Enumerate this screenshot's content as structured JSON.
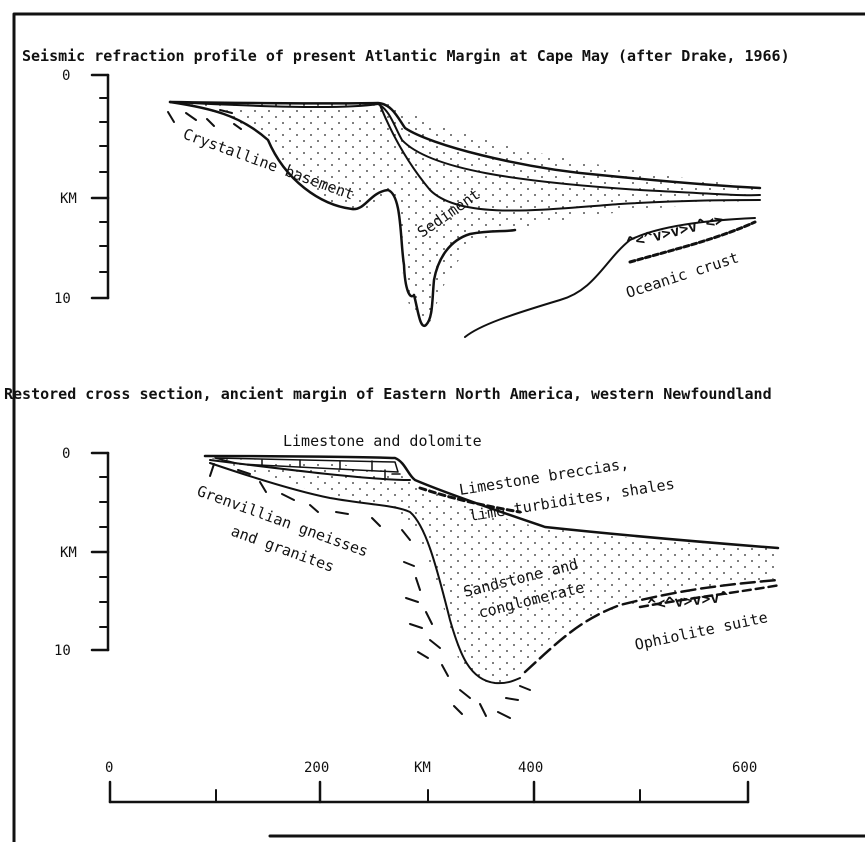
{
  "top": {
    "title": "Seismic refraction profile of present  Atlantic Margin at Cape May (after Drake, 1966)",
    "depth_axis": {
      "ticks": [
        "0",
        "KM",
        "10"
      ]
    },
    "labels": {
      "crystalline_basement": "Crystalline basement",
      "sediment": "Sediment",
      "oceanic_crust": "Oceanic crust"
    }
  },
  "bottom": {
    "title": "Restored cross section, ancient margin of Eastern North America, western Newfoundland",
    "depth_axis": {
      "ticks": [
        "0",
        "KM",
        "10"
      ]
    },
    "labels": {
      "limestone_dolomite": "Limestone and dolomite",
      "breccias_line1": "Limestone breccias,",
      "breccias_line2": "lime turbidites, shales",
      "grenvillian_line1": "Grenvillian gneisses",
      "grenvillian_line2": "and granites",
      "sandstone_line1": "Sandstone and",
      "sandstone_line2": "conglomerate",
      "ophiolite": "Ophiolite suite"
    }
  },
  "distance_axis": {
    "ticks": [
      "0",
      "200",
      "400",
      "600"
    ],
    "unit": "KM"
  }
}
